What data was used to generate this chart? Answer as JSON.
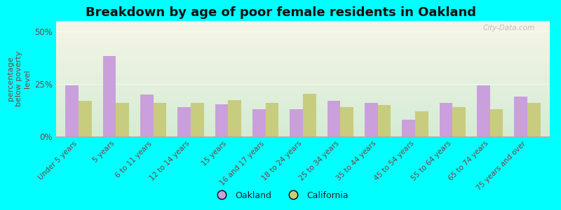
{
  "categories": [
    "Under 5 years",
    "5 years",
    "6 to 11 years",
    "12 to 14 years",
    "15 years",
    "16 and 17 years",
    "18 to 24 years",
    "25 to 34 years",
    "35 to 44 years",
    "45 to 54 years",
    "55 to 64 years",
    "65 to 74 years",
    "75 years and over"
  ],
  "oakland_values": [
    24.5,
    38.5,
    20.0,
    14.0,
    15.5,
    13.0,
    13.0,
    17.0,
    16.0,
    8.0,
    16.0,
    24.5,
    19.0
  ],
  "california_values": [
    17.0,
    16.0,
    16.0,
    16.0,
    17.5,
    16.0,
    20.5,
    14.0,
    15.0,
    12.0,
    14.0,
    13.0,
    16.0
  ],
  "oakland_color": "#c9a0dc",
  "california_color": "#c8cc7e",
  "title": "Breakdown by age of poor female residents in Oakland",
  "ylabel": "percentage\nbelow poverty\nlevel",
  "ylim": [
    0,
    55
  ],
  "yticks": [
    0,
    25,
    50
  ],
  "ytick_labels": [
    "0%",
    "25%",
    "50%"
  ],
  "background_color": "#00ffff",
  "plot_bg_top": "#f5f5e8",
  "plot_bg_bottom": "#d4ecd4",
  "title_fontsize": 13,
  "label_fontsize": 7.5,
  "legend_oakland": "Oakland",
  "legend_california": "California",
  "ylabel_color": "#7a4040",
  "tick_label_color": "#7a4040",
  "ytick_color": "#666666"
}
